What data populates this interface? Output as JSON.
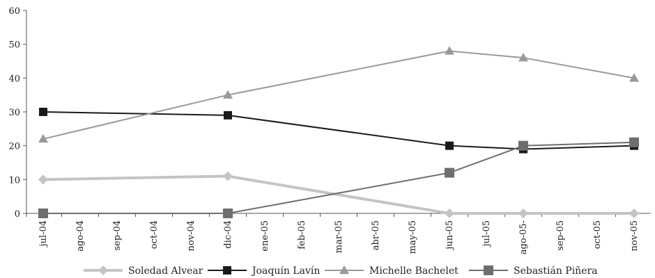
{
  "chart_data": {
    "type": "line",
    "title": "",
    "xlabel": "",
    "ylabel": "",
    "ylim": [
      0,
      60
    ],
    "y_ticks": [
      0,
      10,
      20,
      30,
      40,
      50,
      60
    ],
    "categories": [
      "jul-04",
      "ago-04",
      "sep-04",
      "oct-04",
      "nov-04",
      "dic-04",
      "ene-05",
      "feb-05",
      "mar-05",
      "abr-05",
      "may-05",
      "jun-05",
      "jul-05",
      "ago-05-",
      "sep-05",
      "oct-05",
      "nov-05"
    ],
    "grid": false,
    "legend_position": "bottom",
    "series": [
      {
        "name": "Soledad Alvear",
        "marker": "diamond",
        "color": "#c4c4c4",
        "stroke_width": 4,
        "points": [
          {
            "x": "jul-04",
            "y": 10
          },
          {
            "x": "dic-04",
            "y": 11
          },
          {
            "x": "jun-05",
            "y": 0
          },
          {
            "x": "ago-05-",
            "y": 0
          },
          {
            "x": "nov-05",
            "y": 0
          }
        ]
      },
      {
        "name": "Joaquín Lavín",
        "marker": "square",
        "color": "#1a1a1a",
        "stroke_width": 2,
        "points": [
          {
            "x": "jul-04",
            "y": 30
          },
          {
            "x": "dic-04",
            "y": 29
          },
          {
            "x": "jun-05",
            "y": 20
          },
          {
            "x": "ago-05-",
            "y": 19
          },
          {
            "x": "nov-05",
            "y": 20
          }
        ]
      },
      {
        "name": "Michelle Bachelet",
        "marker": "triangle",
        "color": "#999999",
        "stroke_width": 2,
        "points": [
          {
            "x": "jul-04",
            "y": 22
          },
          {
            "x": "dic-04",
            "y": 35
          },
          {
            "x": "jun-05",
            "y": 48
          },
          {
            "x": "ago-05-",
            "y": 46
          },
          {
            "x": "nov-05",
            "y": 40
          }
        ]
      },
      {
        "name": "Sebastián Piñera",
        "marker": "square-large",
        "color": "#6e6e6e",
        "stroke_width": 2,
        "points": [
          {
            "x": "jul-04",
            "y": 0
          },
          {
            "x": "dic-04",
            "y": 0
          },
          {
            "x": "jun-05",
            "y": 12
          },
          {
            "x": "ago-05-",
            "y": 20
          },
          {
            "x": "nov-05",
            "y": 21
          }
        ]
      }
    ]
  }
}
